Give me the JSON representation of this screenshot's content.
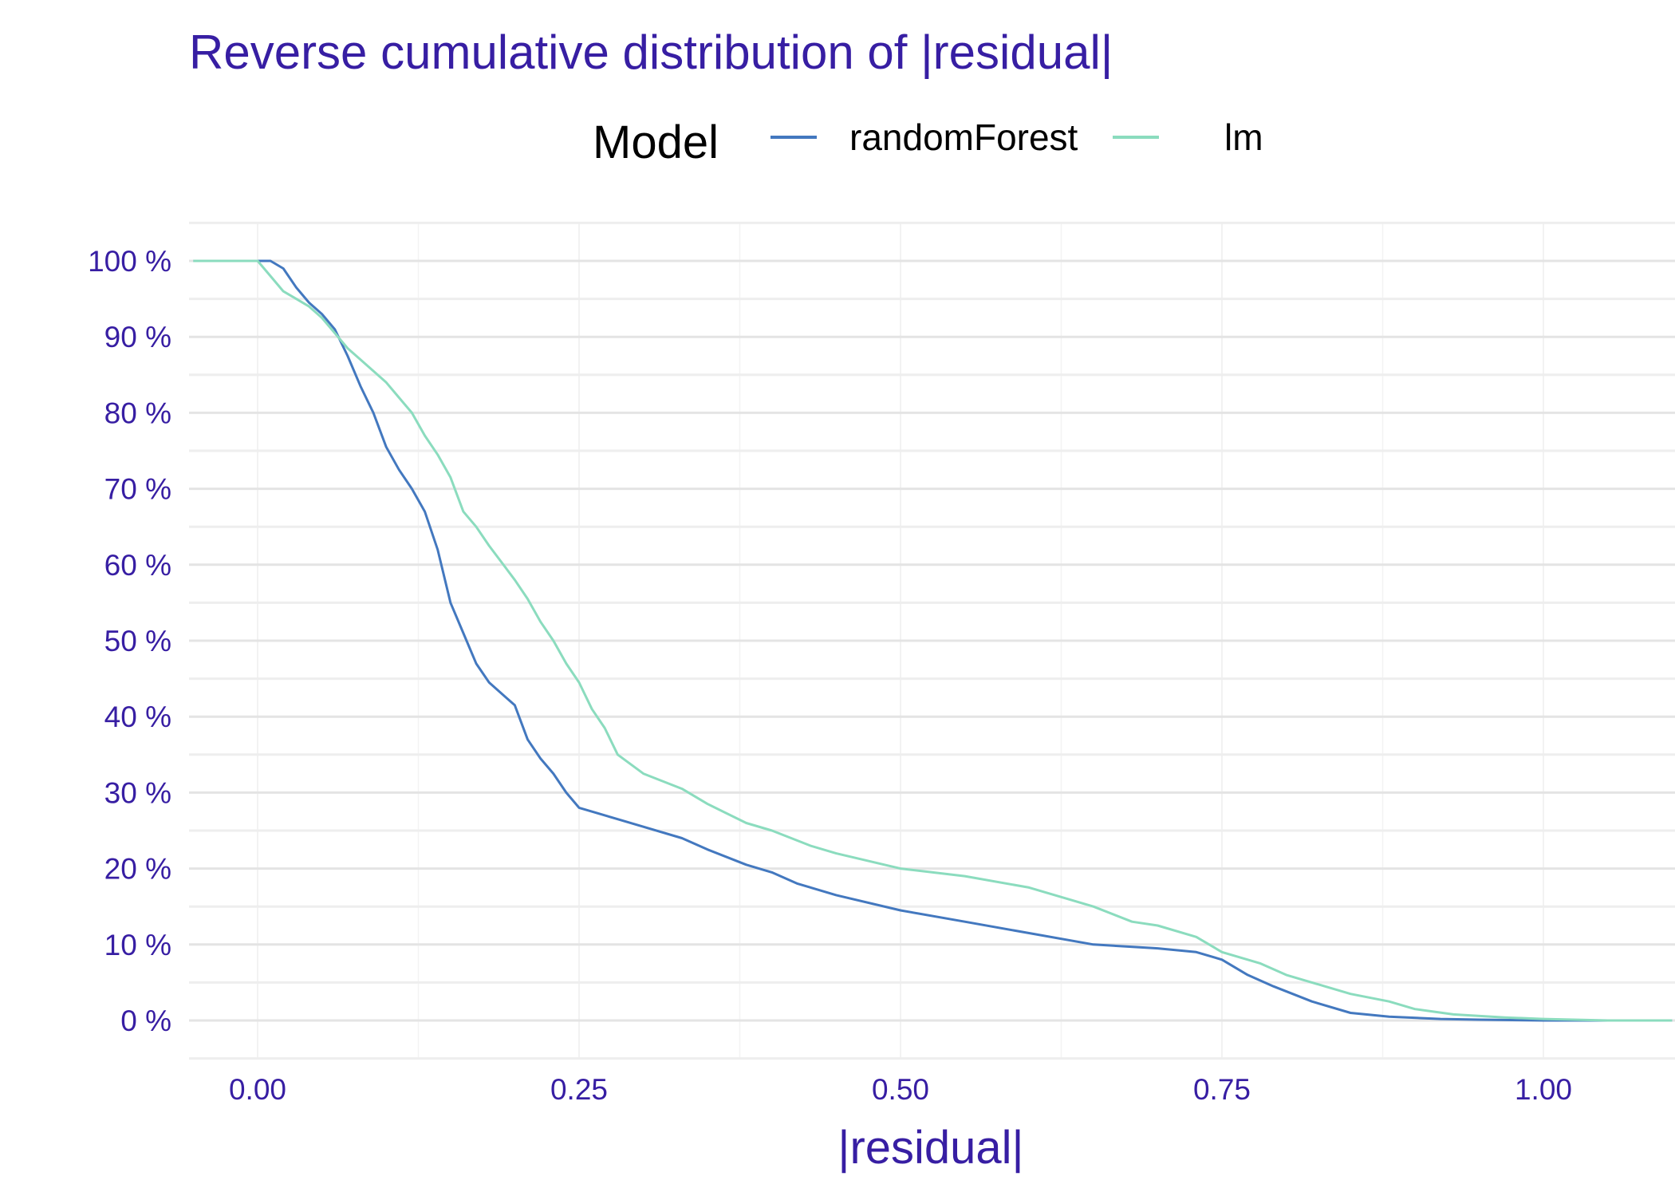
{
  "chart_data": {
    "type": "line",
    "title": "Reverse cumulative distribution of |residual|",
    "xlabel": "|residual|",
    "ylabel": "",
    "xlim": [
      -0.05,
      1.1
    ],
    "ylim": [
      0,
      100
    ],
    "x_ticks": [
      0.0,
      0.25,
      0.5,
      0.75,
      1.0
    ],
    "x_tick_labels": [
      "0.00",
      "0.25",
      "0.50",
      "0.75",
      "1.00"
    ],
    "y_ticks": [
      0,
      10,
      20,
      30,
      40,
      50,
      60,
      70,
      80,
      90,
      100
    ],
    "y_tick_labels": [
      "0 %",
      "10 %",
      "20 %",
      "30 %",
      "40 %",
      "50 %",
      "60 %",
      "70 %",
      "80 %",
      "90 %",
      "100 %"
    ],
    "grid": true,
    "legend": {
      "title": "Model",
      "placement": "top"
    },
    "series": [
      {
        "name": "randomForest",
        "color": "#4378bf",
        "points": [
          [
            -0.05,
            100
          ],
          [
            0.0,
            100
          ],
          [
            0.01,
            100
          ],
          [
            0.02,
            99
          ],
          [
            0.03,
            96.5
          ],
          [
            0.04,
            94.5
          ],
          [
            0.05,
            93
          ],
          [
            0.06,
            91
          ],
          [
            0.07,
            87.5
          ],
          [
            0.08,
            83.5
          ],
          [
            0.09,
            80
          ],
          [
            0.1,
            75.5
          ],
          [
            0.11,
            72.5
          ],
          [
            0.12,
            70
          ],
          [
            0.13,
            67
          ],
          [
            0.14,
            62
          ],
          [
            0.15,
            55
          ],
          [
            0.16,
            51
          ],
          [
            0.17,
            47
          ],
          [
            0.18,
            44.5
          ],
          [
            0.2,
            41.5
          ],
          [
            0.21,
            37
          ],
          [
            0.22,
            34.5
          ],
          [
            0.23,
            32.5
          ],
          [
            0.24,
            30
          ],
          [
            0.25,
            28
          ],
          [
            0.28,
            26.5
          ],
          [
            0.3,
            25.5
          ],
          [
            0.33,
            24
          ],
          [
            0.35,
            22.5
          ],
          [
            0.38,
            20.5
          ],
          [
            0.4,
            19.5
          ],
          [
            0.42,
            18
          ],
          [
            0.45,
            16.5
          ],
          [
            0.5,
            14.5
          ],
          [
            0.55,
            13
          ],
          [
            0.6,
            11.5
          ],
          [
            0.65,
            10
          ],
          [
            0.7,
            9.5
          ],
          [
            0.73,
            9
          ],
          [
            0.75,
            8
          ],
          [
            0.77,
            6
          ],
          [
            0.79,
            4.5
          ],
          [
            0.82,
            2.5
          ],
          [
            0.85,
            1
          ],
          [
            0.88,
            0.5
          ],
          [
            0.92,
            0.2
          ],
          [
            0.95,
            0.1
          ],
          [
            1.0,
            0
          ],
          [
            1.1,
            0
          ]
        ]
      },
      {
        "name": "lm",
        "color": "#8bdcbe",
        "points": [
          [
            -0.05,
            100
          ],
          [
            0.0,
            100
          ],
          [
            0.01,
            98
          ],
          [
            0.02,
            96
          ],
          [
            0.03,
            95
          ],
          [
            0.04,
            94
          ],
          [
            0.05,
            92.5
          ],
          [
            0.06,
            90.5
          ],
          [
            0.07,
            88.5
          ],
          [
            0.08,
            87
          ],
          [
            0.09,
            85.5
          ],
          [
            0.1,
            84
          ],
          [
            0.11,
            82
          ],
          [
            0.12,
            80
          ],
          [
            0.13,
            77
          ],
          [
            0.14,
            74.5
          ],
          [
            0.15,
            71.5
          ],
          [
            0.16,
            67
          ],
          [
            0.17,
            65
          ],
          [
            0.18,
            62.5
          ],
          [
            0.2,
            58
          ],
          [
            0.21,
            55.5
          ],
          [
            0.22,
            52.5
          ],
          [
            0.23,
            50
          ],
          [
            0.24,
            47
          ],
          [
            0.25,
            44.5
          ],
          [
            0.26,
            41
          ],
          [
            0.27,
            38.5
          ],
          [
            0.28,
            35
          ],
          [
            0.3,
            32.5
          ],
          [
            0.33,
            30.5
          ],
          [
            0.35,
            28.5
          ],
          [
            0.38,
            26
          ],
          [
            0.4,
            25
          ],
          [
            0.43,
            23
          ],
          [
            0.45,
            22
          ],
          [
            0.5,
            20
          ],
          [
            0.55,
            19
          ],
          [
            0.6,
            17.5
          ],
          [
            0.63,
            16
          ],
          [
            0.65,
            15
          ],
          [
            0.68,
            13
          ],
          [
            0.7,
            12.5
          ],
          [
            0.73,
            11
          ],
          [
            0.75,
            9
          ],
          [
            0.78,
            7.5
          ],
          [
            0.8,
            6
          ],
          [
            0.83,
            4.5
          ],
          [
            0.85,
            3.5
          ],
          [
            0.88,
            2.5
          ],
          [
            0.9,
            1.5
          ],
          [
            0.93,
            0.8
          ],
          [
            0.97,
            0.4
          ],
          [
            1.0,
            0.2
          ],
          [
            1.05,
            0
          ],
          [
            1.1,
            0
          ]
        ]
      }
    ]
  }
}
